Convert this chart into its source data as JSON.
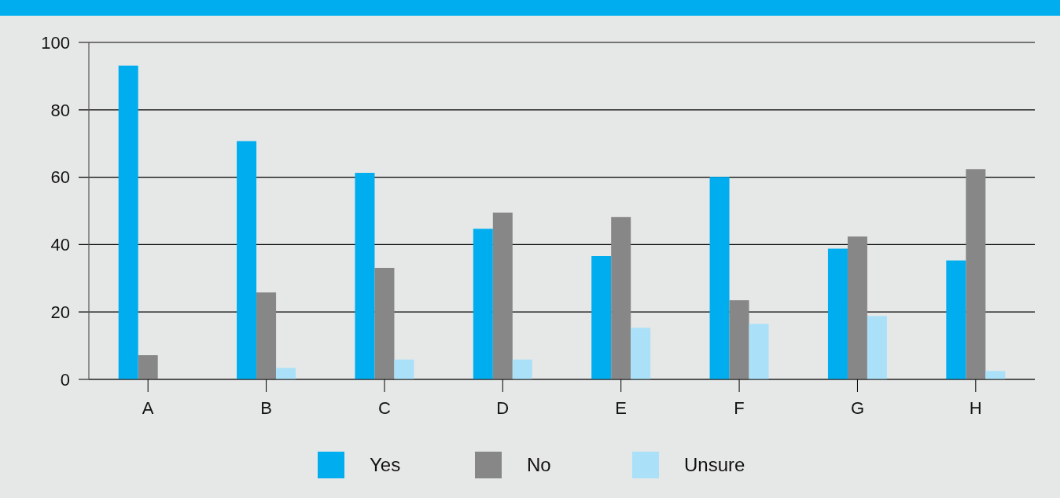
{
  "chart_data": {
    "type": "bar",
    "categories": [
      "A",
      "B",
      "C",
      "D",
      "E",
      "F",
      "G",
      "H"
    ],
    "series": [
      {
        "name": "Yes",
        "color": "#00aeef",
        "values": [
          93.1,
          70.7,
          61.3,
          44.7,
          36.6,
          60.1,
          38.8,
          35.3
        ]
      },
      {
        "name": "No",
        "color": "#878787",
        "values": [
          7.2,
          25.8,
          33.1,
          49.5,
          48.2,
          23.5,
          42.4,
          62.4
        ]
      },
      {
        "name": "Unsure",
        "color": "#abe1f8",
        "values": [
          0,
          3.4,
          5.9,
          5.9,
          15.3,
          16.5,
          18.8,
          2.5
        ]
      }
    ],
    "ylim": [
      0,
      100
    ],
    "yticks": [
      0,
      20,
      40,
      60,
      80,
      100
    ],
    "grid": "y",
    "legend": "bottom"
  }
}
